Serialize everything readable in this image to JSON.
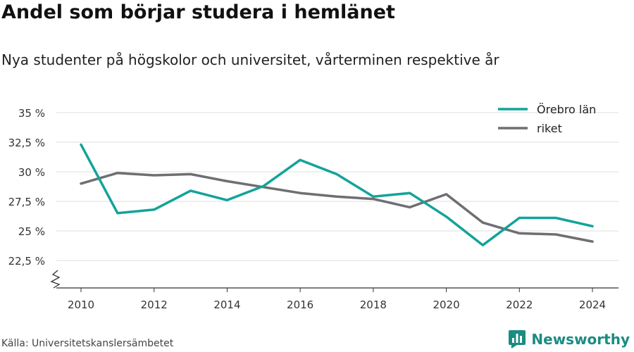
{
  "header": {
    "title": "Andel som börjar studera i hemlänet",
    "subtitle": "Nya studenter på högskolor och universitet, vårterminen respektive år"
  },
  "footer": {
    "source": "Källa: Universitetskanslersämbetet",
    "brand": "Newsworthy",
    "brand_icon": "bar-chart-logo-icon",
    "brand_color": "#1b8c82"
  },
  "chart_data": {
    "type": "line",
    "x": [
      2010,
      2011,
      2012,
      2013,
      2014,
      2015,
      2016,
      2017,
      2018,
      2019,
      2020,
      2021,
      2022,
      2023,
      2024
    ],
    "series": [
      {
        "name": "Örebro län",
        "color": "#13a39a",
        "values": [
          32.3,
          26.5,
          26.8,
          28.4,
          27.6,
          28.8,
          31.0,
          29.8,
          27.9,
          28.2,
          26.2,
          23.8,
          26.1,
          26.1,
          25.4
        ]
      },
      {
        "name": "riket",
        "color": "#6e6e73",
        "values": [
          29.0,
          29.9,
          29.7,
          29.8,
          29.2,
          28.7,
          28.2,
          27.9,
          27.7,
          27.0,
          28.1,
          25.7,
          24.8,
          24.7,
          24.1
        ]
      }
    ],
    "yticks": [
      22.5,
      25,
      27.5,
      30,
      32.5,
      35
    ],
    "ytick_labels": [
      "22,5 %",
      "25 %",
      "27,5 %",
      "30 %",
      "32,5 %",
      "35 %"
    ],
    "xticks": [
      2010,
      2012,
      2014,
      2016,
      2018,
      2020,
      2022,
      2024
    ],
    "xtick_labels": [
      "2010",
      "2012",
      "2014",
      "2016",
      "2018",
      "2020",
      "2022",
      "2024"
    ],
    "ylim": [
      20,
      35
    ],
    "xlim": [
      2009,
      2025
    ],
    "xlabel": "",
    "ylabel": "",
    "axis_break": true,
    "grid": true,
    "legend_position": "top-right"
  }
}
